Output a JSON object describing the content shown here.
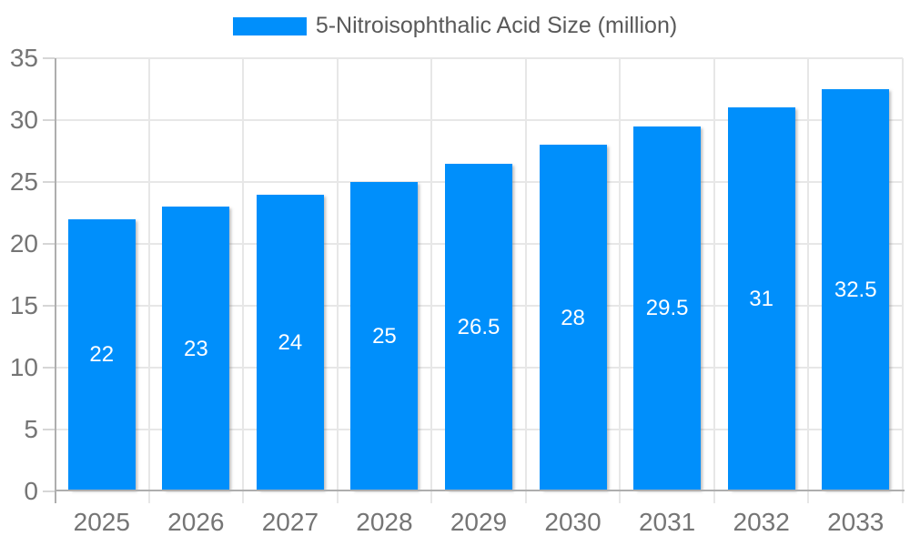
{
  "chart_data": {
    "type": "bar",
    "categories": [
      "2025",
      "2026",
      "2027",
      "2028",
      "2029",
      "2030",
      "2031",
      "2032",
      "2033"
    ],
    "series": [
      {
        "name": "5-Nitroisophthalic Acid Size (million)",
        "values": [
          22,
          23,
          24,
          25,
          26.5,
          28,
          29.5,
          31,
          32.5
        ],
        "value_labels": [
          "22",
          "23",
          "24",
          "25",
          "26.5",
          "28",
          "29.5",
          "31",
          "32.5"
        ],
        "color": "#008FFB"
      }
    ],
    "title": "",
    "xlabel": "",
    "ylabel": "",
    "ylim": [
      0,
      35
    ],
    "yticks": [
      0,
      5,
      10,
      15,
      20,
      25,
      30,
      35
    ],
    "ytick_labels": [
      "0",
      "5",
      "10",
      "15",
      "20",
      "25",
      "30",
      "35"
    ],
    "grid": true,
    "legend_position": "top",
    "value_label_position": "center",
    "colors": {
      "bar": "#008FFB",
      "grid_line": "#e7e7e7",
      "axis_line": "#aeaeae",
      "tick_label": "#757575",
      "legend_text": "#595959",
      "value_label": "#ffffff",
      "background": "#ffffff"
    }
  }
}
